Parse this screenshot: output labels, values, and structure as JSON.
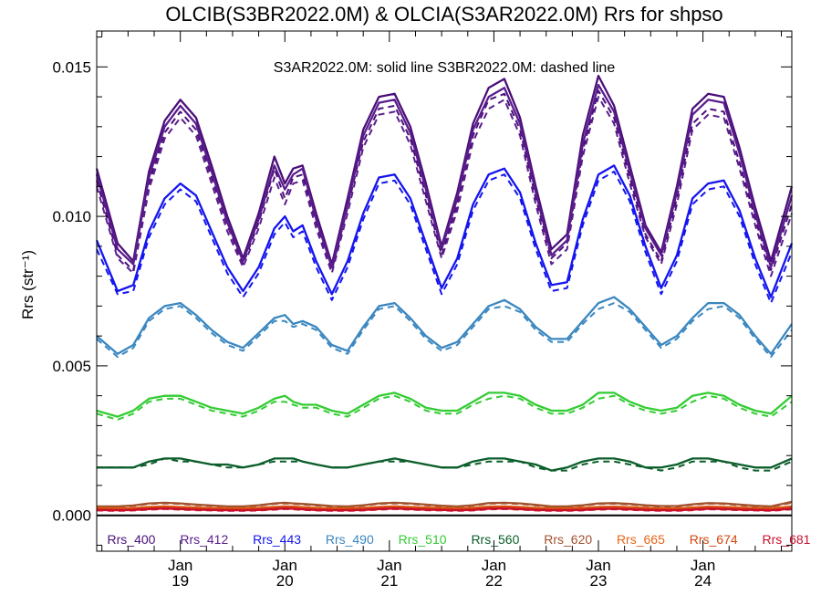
{
  "chart_data": {
    "type": "line",
    "title": "OLCIB(S3BR2022.0M) & OLCIA(S3AR2022.0M)  Rrs for shpso",
    "ylabel": "Rrs (str⁻¹)",
    "annotation": "S3AR2022.0M: solid line   S3BR2022.0M: dashed line",
    "ylim": [
      -0.0012,
      0.0162
    ],
    "y_ticks": [
      {
        "value": 0.0,
        "label": "0.000"
      },
      {
        "value": 0.005,
        "label": "0.005"
      },
      {
        "value": 0.01,
        "label": "0.010"
      },
      {
        "value": 0.015,
        "label": "0.015"
      }
    ],
    "xlim": [
      18.2,
      24.85
    ],
    "x_ticks": [
      {
        "value": 19,
        "month": "Jan",
        "day": "19"
      },
      {
        "value": 20,
        "month": "Jan",
        "day": "20"
      },
      {
        "value": 21,
        "month": "Jan",
        "day": "21"
      },
      {
        "value": 22,
        "month": "Jan",
        "day": "22"
      },
      {
        "value": 23,
        "month": "Jan",
        "day": "23"
      },
      {
        "value": 24,
        "month": "Jan",
        "day": "24"
      }
    ],
    "zero_line": 0.0,
    "x": [
      18.2,
      18.4,
      18.55,
      18.7,
      18.85,
      19.0,
      19.15,
      19.3,
      19.45,
      19.6,
      19.75,
      19.9,
      20.0,
      20.08,
      20.17,
      20.3,
      20.45,
      20.6,
      20.75,
      20.9,
      21.05,
      21.2,
      21.35,
      21.5,
      21.65,
      21.8,
      21.95,
      22.1,
      22.25,
      22.4,
      22.55,
      22.7,
      22.85,
      23.0,
      23.15,
      23.3,
      23.45,
      23.6,
      23.75,
      23.9,
      24.05,
      24.2,
      24.35,
      24.5,
      24.65,
      24.85
    ],
    "series": [
      {
        "name": "Rrs_400",
        "color": "#4b0f7a",
        "solid": [
          0.0116,
          0.0091,
          0.0085,
          0.0115,
          0.0132,
          0.0139,
          0.0133,
          0.0117,
          0.01,
          0.0086,
          0.0101,
          0.012,
          0.0111,
          0.0116,
          0.0117,
          0.0101,
          0.0084,
          0.0106,
          0.0129,
          0.014,
          0.0141,
          0.013,
          0.0111,
          0.009,
          0.0108,
          0.0131,
          0.0143,
          0.0146,
          0.0133,
          0.011,
          0.0089,
          0.0094,
          0.0127,
          0.0147,
          0.0137,
          0.0117,
          0.0097,
          0.0088,
          0.011,
          0.0136,
          0.0141,
          0.014,
          0.0123,
          0.0103,
          0.0085,
          0.011
        ],
        "dashed": [
          0.0112,
          0.0087,
          0.0082,
          0.0111,
          0.0128,
          0.0135,
          0.0129,
          0.0113,
          0.0097,
          0.0084,
          0.0098,
          0.0116,
          0.0106,
          0.0113,
          0.0114,
          0.0098,
          0.0082,
          0.0103,
          0.0125,
          0.0136,
          0.0137,
          0.0126,
          0.0107,
          0.0087,
          0.0104,
          0.0127,
          0.0139,
          0.0141,
          0.0129,
          0.0106,
          0.0086,
          0.0091,
          0.0122,
          0.0142,
          0.0133,
          0.0113,
          0.0094,
          0.0085,
          0.0106,
          0.0131,
          0.0136,
          0.0135,
          0.0118,
          0.0099,
          0.0082,
          0.0104
        ]
      },
      {
        "name": "Rrs_412",
        "color": "#5a1d8c",
        "solid": [
          0.0114,
          0.0089,
          0.0084,
          0.0113,
          0.013,
          0.0137,
          0.0131,
          0.0115,
          0.0098,
          0.0085,
          0.0099,
          0.0117,
          0.0109,
          0.0114,
          0.0116,
          0.0099,
          0.0083,
          0.0104,
          0.0127,
          0.0138,
          0.0139,
          0.0128,
          0.0109,
          0.0089,
          0.0106,
          0.0129,
          0.014,
          0.0143,
          0.0131,
          0.0108,
          0.0087,
          0.0092,
          0.0124,
          0.0144,
          0.0135,
          0.0115,
          0.0096,
          0.0087,
          0.0108,
          0.0134,
          0.0139,
          0.0138,
          0.0121,
          0.0101,
          0.0083,
          0.0107
        ],
        "dashed": [
          0.011,
          0.0086,
          0.0081,
          0.0109,
          0.0126,
          0.0133,
          0.0127,
          0.0111,
          0.0095,
          0.0083,
          0.0096,
          0.0113,
          0.0104,
          0.0111,
          0.0112,
          0.0096,
          0.0081,
          0.0101,
          0.0123,
          0.0134,
          0.0135,
          0.0124,
          0.0105,
          0.0086,
          0.0102,
          0.0125,
          0.0136,
          0.0139,
          0.0127,
          0.0104,
          0.0084,
          0.0089,
          0.012,
          0.014,
          0.0131,
          0.0111,
          0.0093,
          0.0084,
          0.0104,
          0.0129,
          0.0134,
          0.0133,
          0.0116,
          0.0097,
          0.008,
          0.0101
        ]
      },
      {
        "name": "Rrs_443",
        "color": "#1414f0",
        "solid": [
          0.0092,
          0.0075,
          0.0077,
          0.0095,
          0.0106,
          0.0111,
          0.0107,
          0.0095,
          0.0083,
          0.0075,
          0.0083,
          0.0096,
          0.01,
          0.0095,
          0.0097,
          0.0085,
          0.0074,
          0.0085,
          0.0101,
          0.0113,
          0.0114,
          0.0106,
          0.0091,
          0.0076,
          0.0086,
          0.0104,
          0.0114,
          0.0116,
          0.0108,
          0.0091,
          0.0077,
          0.0078,
          0.0099,
          0.0114,
          0.0117,
          0.0107,
          0.009,
          0.0076,
          0.0087,
          0.0106,
          0.0111,
          0.0112,
          0.0102,
          0.0086,
          0.0073,
          0.0091
        ],
        "dashed": [
          0.0089,
          0.0074,
          0.0075,
          0.0093,
          0.0104,
          0.0109,
          0.0105,
          0.0093,
          0.0081,
          0.0073,
          0.0081,
          0.0094,
          0.0098,
          0.0093,
          0.0095,
          0.0083,
          0.0072,
          0.0083,
          0.0099,
          0.0111,
          0.0112,
          0.0104,
          0.0089,
          0.0074,
          0.0084,
          0.0102,
          0.0112,
          0.0114,
          0.0106,
          0.0089,
          0.0075,
          0.0076,
          0.0097,
          0.0112,
          0.0115,
          0.0105,
          0.0088,
          0.0074,
          0.0085,
          0.0104,
          0.0109,
          0.011,
          0.01,
          0.0084,
          0.0071,
          0.0088
        ]
      },
      {
        "name": "Rrs_490",
        "color": "#3a87c0",
        "solid": [
          0.006,
          0.0054,
          0.0057,
          0.0066,
          0.007,
          0.0071,
          0.0067,
          0.0062,
          0.0058,
          0.0056,
          0.0061,
          0.0066,
          0.0067,
          0.0064,
          0.0065,
          0.0063,
          0.0057,
          0.0055,
          0.0063,
          0.007,
          0.0071,
          0.0066,
          0.006,
          0.0056,
          0.0058,
          0.0064,
          0.007,
          0.0072,
          0.0069,
          0.0063,
          0.0059,
          0.0059,
          0.0065,
          0.0071,
          0.0073,
          0.0069,
          0.0063,
          0.0057,
          0.006,
          0.0066,
          0.0071,
          0.0071,
          0.0067,
          0.006,
          0.0054,
          0.0064
        ],
        "dashed": [
          0.0059,
          0.0053,
          0.0056,
          0.0065,
          0.0069,
          0.007,
          0.0066,
          0.0061,
          0.0057,
          0.0055,
          0.006,
          0.0065,
          0.0065,
          0.0063,
          0.0064,
          0.0062,
          0.0056,
          0.0054,
          0.0062,
          0.0069,
          0.007,
          0.0065,
          0.0059,
          0.0055,
          0.0057,
          0.0063,
          0.0069,
          0.007,
          0.0068,
          0.0062,
          0.0058,
          0.0058,
          0.0064,
          0.0069,
          0.0071,
          0.0068,
          0.0062,
          0.0056,
          0.0059,
          0.0065,
          0.0069,
          0.007,
          0.0066,
          0.0059,
          0.0053,
          0.0062
        ]
      },
      {
        "name": "Rrs_510",
        "color": "#33cc33",
        "solid": [
          0.0035,
          0.0033,
          0.0035,
          0.0039,
          0.004,
          0.004,
          0.0038,
          0.0036,
          0.0035,
          0.0034,
          0.0036,
          0.0039,
          0.004,
          0.0038,
          0.0037,
          0.0037,
          0.0035,
          0.0034,
          0.0037,
          0.004,
          0.0041,
          0.0039,
          0.0036,
          0.0035,
          0.0035,
          0.0038,
          0.0041,
          0.0041,
          0.004,
          0.0037,
          0.0035,
          0.0035,
          0.0037,
          0.0041,
          0.0041,
          0.0038,
          0.0036,
          0.0035,
          0.0036,
          0.004,
          0.0041,
          0.004,
          0.0037,
          0.0035,
          0.0034,
          0.004
        ],
        "dashed": [
          0.0034,
          0.0032,
          0.0034,
          0.0038,
          0.0039,
          0.0039,
          0.0037,
          0.0035,
          0.0034,
          0.0033,
          0.0035,
          0.0038,
          0.0038,
          0.0037,
          0.0036,
          0.0036,
          0.0034,
          0.0033,
          0.0036,
          0.0039,
          0.004,
          0.0038,
          0.0035,
          0.0034,
          0.0034,
          0.0037,
          0.0039,
          0.004,
          0.0039,
          0.0036,
          0.0034,
          0.0034,
          0.0036,
          0.0039,
          0.004,
          0.0037,
          0.0035,
          0.0034,
          0.0035,
          0.0038,
          0.004,
          0.0039,
          0.0036,
          0.0034,
          0.0033,
          0.0038
        ]
      },
      {
        "name": "Rrs_560",
        "color": "#0b5e2a",
        "solid": [
          0.0016,
          0.0016,
          0.0016,
          0.0018,
          0.0019,
          0.0019,
          0.0018,
          0.0017,
          0.0017,
          0.0016,
          0.0017,
          0.0019,
          0.0019,
          0.0019,
          0.0018,
          0.0017,
          0.0016,
          0.0016,
          0.0017,
          0.0018,
          0.0019,
          0.0018,
          0.0017,
          0.0016,
          0.0016,
          0.0018,
          0.0019,
          0.0019,
          0.0018,
          0.0017,
          0.0015,
          0.0016,
          0.0018,
          0.0019,
          0.0019,
          0.0018,
          0.0016,
          0.0016,
          0.0017,
          0.0019,
          0.0019,
          0.0018,
          0.0017,
          0.0016,
          0.0016,
          0.0019
        ],
        "dashed": [
          0.0016,
          0.0016,
          0.0016,
          0.0017,
          0.0019,
          0.0018,
          0.0018,
          0.0017,
          0.0016,
          0.0016,
          0.0017,
          0.0018,
          0.0018,
          0.0018,
          0.0018,
          0.0017,
          0.0016,
          0.0016,
          0.0017,
          0.0018,
          0.0018,
          0.0018,
          0.0017,
          0.0016,
          0.0016,
          0.0017,
          0.0018,
          0.0018,
          0.0018,
          0.0016,
          0.0015,
          0.0015,
          0.0017,
          0.0018,
          0.0018,
          0.0017,
          0.0016,
          0.0015,
          0.0016,
          0.0018,
          0.0018,
          0.0018,
          0.0016,
          0.0015,
          0.0015,
          0.0018
        ]
      },
      {
        "name": "Rrs_620",
        "color": "#a0522d",
        "solid": [
          0.0003,
          0.0003,
          0.00033,
          0.0004,
          0.00042,
          0.0004,
          0.00036,
          0.00033,
          0.0003,
          0.0003,
          0.00034,
          0.0004,
          0.00042,
          0.0004,
          0.00038,
          0.00035,
          0.00031,
          0.0003,
          0.00034,
          0.0004,
          0.00042,
          0.0004,
          0.00036,
          0.00032,
          0.0003,
          0.00034,
          0.00041,
          0.00042,
          0.0004,
          0.00035,
          0.0003,
          0.0003,
          0.00034,
          0.0004,
          0.00041,
          0.00038,
          0.00034,
          0.00031,
          0.00031,
          0.00037,
          0.00041,
          0.0004,
          0.00036,
          0.00032,
          0.0003,
          0.00045
        ],
        "dashed": [
          0.00028,
          0.00028,
          0.00031,
          0.00038,
          0.0004,
          0.00038,
          0.00034,
          0.00031,
          0.00028,
          0.00028,
          0.00032,
          0.00038,
          0.0004,
          0.00038,
          0.00036,
          0.00033,
          0.00029,
          0.00028,
          0.00032,
          0.00038,
          0.0004,
          0.00038,
          0.00034,
          0.0003,
          0.00028,
          0.00032,
          0.00039,
          0.0004,
          0.00038,
          0.00033,
          0.00028,
          0.00028,
          0.00032,
          0.00038,
          0.00039,
          0.00036,
          0.00032,
          0.00029,
          0.00029,
          0.00035,
          0.00039,
          0.00038,
          0.00034,
          0.0003,
          0.00028,
          0.00042
        ]
      },
      {
        "name": "Rrs_665",
        "color": "#e8651a",
        "solid": [
          0.00024,
          0.00023,
          0.00024,
          0.00028,
          0.0003,
          0.00028,
          0.00026,
          0.00024,
          0.00023,
          0.00023,
          0.00025,
          0.00028,
          0.0003,
          0.00029,
          0.00027,
          0.00025,
          0.00023,
          0.00023,
          0.00025,
          0.00028,
          0.0003,
          0.00028,
          0.00026,
          0.00024,
          0.00023,
          0.00025,
          0.00029,
          0.0003,
          0.00028,
          0.00025,
          0.00023,
          0.00023,
          0.00025,
          0.00028,
          0.00029,
          0.00027,
          0.00025,
          0.00023,
          0.00023,
          0.00026,
          0.00029,
          0.00028,
          0.00026,
          0.00024,
          0.00023,
          0.0003
        ],
        "dashed": [
          0.00022,
          0.00021,
          0.00022,
          0.00026,
          0.00028,
          0.00026,
          0.00024,
          0.00022,
          0.00021,
          0.00021,
          0.00023,
          0.00026,
          0.00028,
          0.00027,
          0.00025,
          0.00023,
          0.00021,
          0.00021,
          0.00023,
          0.00026,
          0.00028,
          0.00026,
          0.00024,
          0.00022,
          0.00021,
          0.00023,
          0.00027,
          0.00028,
          0.00026,
          0.00023,
          0.00021,
          0.00021,
          0.00023,
          0.00026,
          0.00027,
          0.00025,
          0.00023,
          0.00021,
          0.00021,
          0.00024,
          0.00027,
          0.00026,
          0.00024,
          0.00022,
          0.00021,
          0.00028
        ]
      },
      {
        "name": "Rrs_674",
        "color": "#d4480c",
        "solid": [
          0.00022,
          0.00021,
          0.00022,
          0.00026,
          0.00028,
          0.00026,
          0.00024,
          0.00022,
          0.00021,
          0.00021,
          0.00023,
          0.00026,
          0.00028,
          0.00027,
          0.00025,
          0.00023,
          0.00021,
          0.00021,
          0.00023,
          0.00026,
          0.00028,
          0.00026,
          0.00024,
          0.00022,
          0.00021,
          0.00023,
          0.00027,
          0.00028,
          0.00026,
          0.00023,
          0.00021,
          0.00021,
          0.00023,
          0.00026,
          0.00027,
          0.00025,
          0.00023,
          0.00021,
          0.00021,
          0.00024,
          0.00027,
          0.00026,
          0.00024,
          0.00022,
          0.00021,
          0.00028
        ],
        "dashed": [
          0.0002,
          0.00019,
          0.0002,
          0.00024,
          0.00026,
          0.00024,
          0.00022,
          0.0002,
          0.00019,
          0.00019,
          0.00021,
          0.00024,
          0.00026,
          0.00025,
          0.00023,
          0.00021,
          0.00019,
          0.00019,
          0.00021,
          0.00024,
          0.00026,
          0.00024,
          0.00022,
          0.0002,
          0.00019,
          0.00021,
          0.00025,
          0.00026,
          0.00024,
          0.00021,
          0.00019,
          0.00019,
          0.00021,
          0.00024,
          0.00025,
          0.00023,
          0.00021,
          0.00019,
          0.00019,
          0.00022,
          0.00025,
          0.00024,
          0.00022,
          0.0002,
          0.00019,
          0.00026
        ]
      },
      {
        "name": "Rrs_681",
        "color": "#c8102e",
        "solid": [
          0.00018,
          0.00017,
          0.00018,
          0.00021,
          0.00023,
          0.00021,
          0.00019,
          0.00018,
          0.00017,
          0.00017,
          0.00018,
          0.00021,
          0.00023,
          0.00022,
          0.0002,
          0.00018,
          0.00017,
          0.00017,
          0.00018,
          0.00021,
          0.00023,
          0.00021,
          0.00019,
          0.00018,
          0.00017,
          0.00018,
          0.00022,
          0.00023,
          0.00021,
          0.00018,
          0.00017,
          0.00017,
          0.00018,
          0.00021,
          0.00022,
          0.0002,
          0.00018,
          0.00017,
          0.00017,
          0.00019,
          0.00022,
          0.00021,
          0.00019,
          0.00018,
          0.00017,
          0.00022
        ],
        "dashed": [
          0.00016,
          0.00015,
          0.00016,
          0.00019,
          0.00021,
          0.00019,
          0.00017,
          0.00016,
          0.00015,
          0.00015,
          0.00016,
          0.00019,
          0.00021,
          0.0002,
          0.00018,
          0.00016,
          0.00015,
          0.00015,
          0.00016,
          0.00019,
          0.00021,
          0.00019,
          0.00017,
          0.00016,
          0.00015,
          0.00016,
          0.0002,
          0.00021,
          0.00019,
          0.00016,
          0.00015,
          0.00015,
          0.00016,
          0.00019,
          0.0002,
          0.00018,
          0.00016,
          0.00015,
          0.00015,
          0.00017,
          0.0002,
          0.00019,
          0.00017,
          0.00016,
          0.00015,
          0.0002
        ]
      }
    ]
  }
}
